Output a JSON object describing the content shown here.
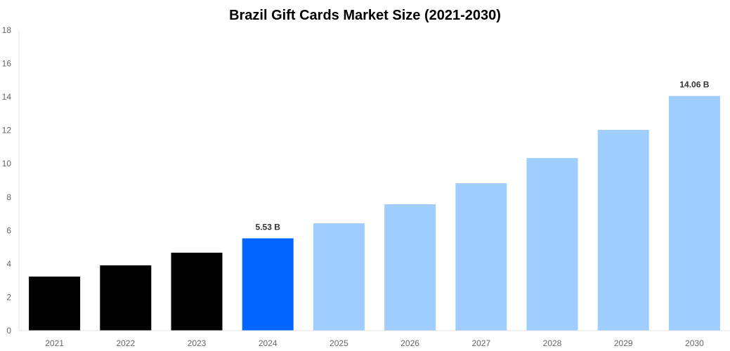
{
  "chart_data": {
    "type": "bar",
    "title": "Brazil Gift Cards Market Size (2021-2030)",
    "xlabel": "",
    "ylabel": "",
    "ylim": [
      0,
      18
    ],
    "yticks": [
      0,
      2,
      4,
      6,
      8,
      10,
      12,
      14,
      16,
      18
    ],
    "grid": false,
    "categories": [
      "2021",
      "2022",
      "2023",
      "2024",
      "2025",
      "2026",
      "2027",
      "2028",
      "2029",
      "2030"
    ],
    "values": [
      3.24,
      3.91,
      4.67,
      5.53,
      6.43,
      7.57,
      8.83,
      10.34,
      12.03,
      14.06
    ],
    "data_labels": {
      "3": "5.53 B",
      "9": "14.06 B"
    },
    "colors": {
      "historical": "#000000",
      "current": "#0066ff",
      "forecast": "#a0cdff"
    },
    "bar_color_groups": [
      "historical",
      "historical",
      "historical",
      "current",
      "forecast",
      "forecast",
      "forecast",
      "forecast",
      "forecast",
      "forecast"
    ]
  }
}
